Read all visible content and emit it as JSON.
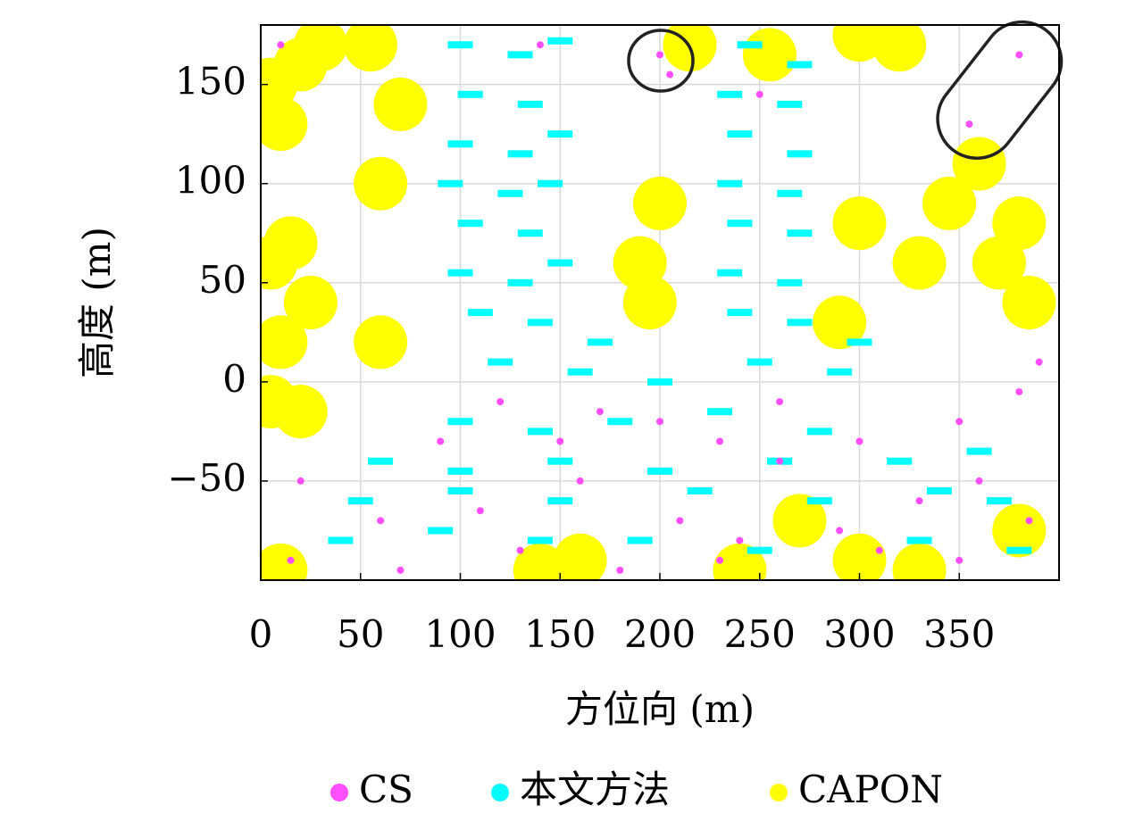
{
  "chart_data": {
    "type": "scatter",
    "x_label": "方位向 (m)",
    "y_label": "高度 (m)",
    "xlim": [
      0,
      400
    ],
    "xticks": [
      0,
      50,
      100,
      150,
      200,
      250,
      300,
      350
    ],
    "ylim": [
      -100,
      180
    ],
    "yticks": [
      {
        "value": -50,
        "label": "−50"
      },
      0,
      50,
      100,
      150
    ],
    "grid": true,
    "series": [
      {
        "name": "CS",
        "color": "#ff4dff",
        "x": [
          200,
          205,
          140,
          250,
          380,
          355,
          10,
          90,
          120,
          170,
          200,
          230,
          260,
          300,
          350,
          390,
          380,
          20,
          60,
          110,
          160,
          210,
          240,
          290,
          330,
          360,
          385,
          15,
          70,
          130,
          180,
          230,
          310,
          350,
          260,
          150
        ],
        "y": [
          165,
          155,
          170,
          145,
          165,
          130,
          170,
          -30,
          -10,
          -15,
          -20,
          -30,
          -10,
          -30,
          -20,
          10,
          -5,
          -50,
          -70,
          -65,
          -50,
          -70,
          -80,
          -75,
          -60,
          -50,
          -70,
          -90,
          -95,
          -85,
          -95,
          -90,
          -85,
          -90,
          -40,
          -30
        ]
      },
      {
        "name": "本文方法",
        "color": "#00ffff",
        "x": [
          100,
          130,
          150,
          245,
          270,
          105,
          135,
          235,
          265,
          100,
          130,
          150,
          240,
          270,
          95,
          125,
          145,
          235,
          265,
          105,
          135,
          240,
          270,
          100,
          130,
          150,
          235,
          265,
          110,
          140,
          170,
          240,
          270,
          300,
          120,
          160,
          200,
          250,
          290,
          100,
          140,
          180,
          230,
          280,
          60,
          100,
          150,
          200,
          260,
          320,
          360,
          50,
          100,
          150,
          220,
          280,
          340,
          370,
          40,
          90,
          140,
          190,
          250,
          330,
          380
        ],
        "y": [
          170,
          165,
          172,
          170,
          160,
          145,
          140,
          145,
          140,
          120,
          115,
          125,
          125,
          115,
          100,
          95,
          100,
          100,
          95,
          80,
          75,
          80,
          75,
          55,
          50,
          60,
          55,
          50,
          35,
          30,
          20,
          35,
          30,
          20,
          10,
          5,
          0,
          10,
          5,
          -20,
          -25,
          -20,
          -15,
          -25,
          -40,
          -45,
          -40,
          -45,
          -40,
          -40,
          -35,
          -60,
          -55,
          -60,
          -55,
          -60,
          -55,
          -60,
          -80,
          -75,
          -80,
          -80,
          -85,
          -80,
          -85
        ]
      },
      {
        "name": "CAPON",
        "color": "#ffff00",
        "x": [
          5,
          10,
          20,
          30,
          5,
          15,
          10,
          25,
          5,
          20,
          60,
          55,
          70,
          60,
          195,
          190,
          200,
          215,
          255,
          300,
          320,
          330,
          345,
          370,
          385,
          380,
          360,
          300,
          290,
          380,
          300,
          330,
          160,
          140,
          10,
          240,
          270
        ],
        "y": [
          150,
          130,
          160,
          170,
          60,
          70,
          20,
          40,
          -10,
          -15,
          100,
          170,
          140,
          20,
          40,
          60,
          90,
          170,
          165,
          175,
          170,
          60,
          90,
          60,
          40,
          80,
          110,
          80,
          30,
          -75,
          -90,
          -95,
          -90,
          -95,
          -95,
          -95,
          -70
        ]
      }
    ],
    "legend": "bottom"
  }
}
